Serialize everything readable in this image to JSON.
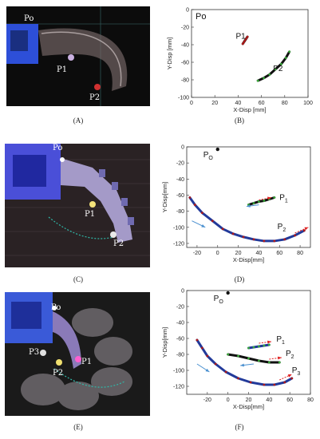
{
  "captions": {
    "A": "(A)",
    "B": "(B)",
    "C": "(C)",
    "D": "(D)",
    "E": "(E)",
    "F": "(F)"
  },
  "photos": {
    "A": {
      "labels": {
        "po": "Po",
        "p1": "P1",
        "p2": "P2"
      }
    },
    "C": {
      "labels": {
        "po": "Po",
        "p1": "P1",
        "p2": "P2"
      }
    },
    "E": {
      "labels": {
        "po": "Po",
        "p1": "P1",
        "p2": "P2",
        "p3": "P3"
      }
    }
  },
  "colors": {
    "track_red": "#b01a1a",
    "track_green": "#3aaa3a",
    "track_black": "#111111",
    "track_blue": "#223a9a",
    "arrow_red": "#e02020",
    "arrow_blue": "#4a90d0",
    "photo_bg": "#101010"
  },
  "chart_data": [
    {
      "id": "B",
      "type": "scatter",
      "title": "",
      "corner_label": "Po",
      "xlabel": "X-Disp [mm]",
      "ylabel": "Y-Disp [mm]",
      "xlim": [
        0,
        100
      ],
      "ylim": [
        -100,
        0
      ],
      "xticks": [
        "0",
        "20",
        "40",
        "60",
        "80",
        "100"
      ],
      "yticks": [
        "0",
        "-20",
        "-40",
        "-60",
        "-80",
        "-100"
      ],
      "series": [
        {
          "name": "P1",
          "points": [
            [
              44,
              -39
            ],
            [
              45,
              -37
            ],
            [
              46,
              -35
            ],
            [
              47,
              -33
            ],
            [
              48,
              -31
            ]
          ]
        },
        {
          "name": "P2",
          "points": [
            [
              57,
              -81
            ],
            [
              62,
              -78
            ],
            [
              67,
              -74
            ],
            [
              72,
              -68
            ],
            [
              77,
              -62
            ],
            [
              81,
              -55
            ],
            [
              84,
              -48
            ]
          ]
        }
      ],
      "annotations": [
        {
          "text": "P1",
          "x": 38,
          "y": -33
        },
        {
          "text": "P2",
          "x": 70,
          "y": -70
        }
      ]
    },
    {
      "id": "D",
      "type": "scatter",
      "title": "",
      "xlabel": "X-Disp[mm]",
      "ylabel": "Y-Disp[mm]",
      "xlim": [
        -30,
        90
      ],
      "ylim": [
        -125,
        0
      ],
      "xticks": [
        "-20",
        "0",
        "20",
        "40",
        "60",
        "80"
      ],
      "yticks": [
        "0",
        "-20",
        "-40",
        "-60",
        "-80",
        "-100",
        "-120"
      ],
      "origin": {
        "label": "P",
        "sub": "O",
        "x": 0,
        "y": -3
      },
      "series": [
        {
          "name": "P1",
          "points": [
            [
              30,
              -72
            ],
            [
              35,
              -70
            ],
            [
              40,
              -68
            ],
            [
              45,
              -67
            ],
            [
              50,
              -65
            ],
            [
              55,
              -63
            ]
          ]
        },
        {
          "name": "P2",
          "points": [
            [
              -27,
              -63
            ],
            [
              -22,
              -72
            ],
            [
              -15,
              -82
            ],
            [
              -5,
              -92
            ],
            [
              5,
              -102
            ],
            [
              15,
              -108
            ],
            [
              25,
              -112
            ],
            [
              35,
              -115
            ],
            [
              45,
              -117
            ],
            [
              55,
              -117
            ],
            [
              65,
              -115
            ],
            [
              75,
              -110
            ],
            [
              84,
              -104
            ]
          ]
        }
      ],
      "annotations": [
        {
          "text": "P",
          "sub": "1",
          "x": 60,
          "y": -66
        },
        {
          "text": "P",
          "sub": "2",
          "x": 58,
          "y": -102
        }
      ]
    },
    {
      "id": "F",
      "type": "scatter",
      "title": "",
      "xlabel": "X-Disp[mm]",
      "ylabel": "Y-Disp[mm]",
      "xlim": [
        -40,
        80
      ],
      "ylim": [
        -130,
        0
      ],
      "xticks": [
        "-20",
        "0",
        "20",
        "40",
        "60",
        "80"
      ],
      "yticks": [
        "0",
        "-20",
        "-40",
        "-60",
        "-80",
        "-100",
        "-120"
      ],
      "origin": {
        "label": "P",
        "sub": "O",
        "x": 0,
        "y": -3
      },
      "series": [
        {
          "name": "P1",
          "points": [
            [
              20,
              -72
            ],
            [
              25,
              -71
            ],
            [
              30,
              -70
            ],
            [
              35,
              -69
            ],
            [
              40,
              -68
            ]
          ]
        },
        {
          "name": "P2",
          "points": [
            [
              0,
              -80
            ],
            [
              10,
              -82
            ],
            [
              20,
              -85
            ],
            [
              30,
              -88
            ],
            [
              40,
              -90
            ],
            [
              50,
              -90
            ]
          ]
        },
        {
          "name": "P3",
          "points": [
            [
              -30,
              -62
            ],
            [
              -25,
              -72
            ],
            [
              -20,
              -82
            ],
            [
              -12,
              -92
            ],
            [
              -2,
              -102
            ],
            [
              10,
              -110
            ],
            [
              22,
              -115
            ],
            [
              35,
              -118
            ],
            [
              45,
              -118
            ],
            [
              55,
              -115
            ],
            [
              62,
              -110
            ]
          ]
        }
      ],
      "annotations": [
        {
          "text": "P",
          "sub": "1",
          "x": 47,
          "y": -64
        },
        {
          "text": "P",
          "sub": "2",
          "x": 56,
          "y": -82
        },
        {
          "text": "P",
          "sub": "3",
          "x": 62,
          "y": -103
        }
      ]
    }
  ]
}
